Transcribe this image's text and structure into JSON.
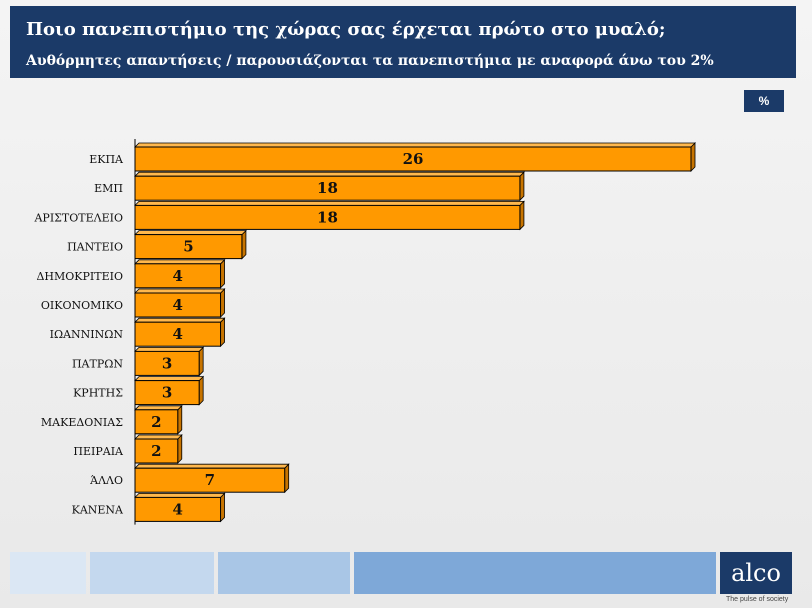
{
  "header": {
    "title": "Ποιο πανεπιστήμιο της χώρας σας έρχεται πρώτο στο μυαλό;",
    "subtitle": "Αυθόρμητες απαντήσεις  / παρουσιάζονται τα πανεπιστήμια με αναφορά άνω του 2%"
  },
  "unit_badge": "%",
  "colors": {
    "header_bg": "#1b3a68",
    "bar_fill": "#ff9900",
    "bar_side": "#c77400"
  },
  "chart_data": {
    "type": "bar",
    "orientation": "horizontal",
    "categories": [
      "ΕΚΠΑ",
      "ΕΜΠ",
      "ΑΡΙΣΤΟΤΕΛΕΙΟ",
      "ΠΑΝΤΕΙΟ",
      "ΔΗΜΟΚΡΙΤΕΙΟ",
      "ΟΙΚΟΝΟΜΙΚΟ",
      "ΙΩΑΝΝΙΝΩΝ",
      "ΠΑΤΡΩΝ",
      "ΚΡΗΤΗΣ",
      "ΜΑΚΕΔΟΝΙΑΣ",
      "ΠΕΙΡΑΙΑ",
      "ΆΛΛΟ",
      "ΚΑΝΕΝΑ"
    ],
    "values": [
      26,
      18,
      18,
      5,
      4,
      4,
      4,
      3,
      3,
      2,
      2,
      7,
      4
    ],
    "unit": "%",
    "xlim": [
      0,
      26
    ],
    "grid": false,
    "legend": "none"
  },
  "footer": {
    "logo_text": "alco",
    "tagline": "The pulse of society"
  }
}
